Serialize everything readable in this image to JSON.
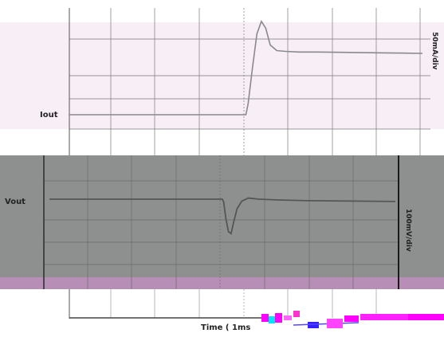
{
  "chart_data": [
    {
      "type": "line",
      "title": "",
      "series": [
        {
          "name": "Iout",
          "x": [
            0,
            4.0,
            4.05,
            4.15,
            4.25,
            4.35,
            4.45,
            4.55,
            4.7,
            4.9,
            5.2,
            5.6,
            6.0,
            7.0,
            8.0
          ],
          "values": [
            0,
            0,
            0.4,
            1.7,
            2.9,
            3.35,
            3.1,
            2.5,
            2.3,
            2.27,
            2.25,
            2.25,
            2.24,
            2.22,
            2.2
          ]
        }
      ],
      "y_scale_label": "50mA/div",
      "xlim": [
        0,
        8
      ],
      "grid": true
    },
    {
      "type": "line",
      "title": "",
      "series": [
        {
          "name": "Vout",
          "x": [
            0,
            4.0,
            4.03,
            4.08,
            4.14,
            4.2,
            4.26,
            4.34,
            4.45,
            4.6,
            4.85,
            5.3,
            6.0,
            7.0,
            8.0
          ],
          "values": [
            0,
            0,
            -0.08,
            -0.5,
            -0.85,
            -0.9,
            -0.6,
            -0.25,
            -0.05,
            0.03,
            0,
            -0.02,
            -0.04,
            -0.05,
            -0.06
          ]
        }
      ],
      "y_scale_label": "100mV/div",
      "xlim": [
        0,
        8
      ],
      "grid": true
    }
  ],
  "labels": {
    "iout": "Iout",
    "vout": "Vout",
    "top_scale": "50mA/div",
    "bottom_scale": "100mV/div",
    "time_axis": "Time ( 1ms"
  },
  "colors": {
    "top_band": "#f8eef6",
    "bottom_panel": "#8e9090",
    "strip": "#b78eb6",
    "trace_top": "#8a8a8a",
    "trace_bottom": "#555555",
    "grid_top": "#7a7a7a",
    "grid_bottom": "#6a6c6c"
  }
}
